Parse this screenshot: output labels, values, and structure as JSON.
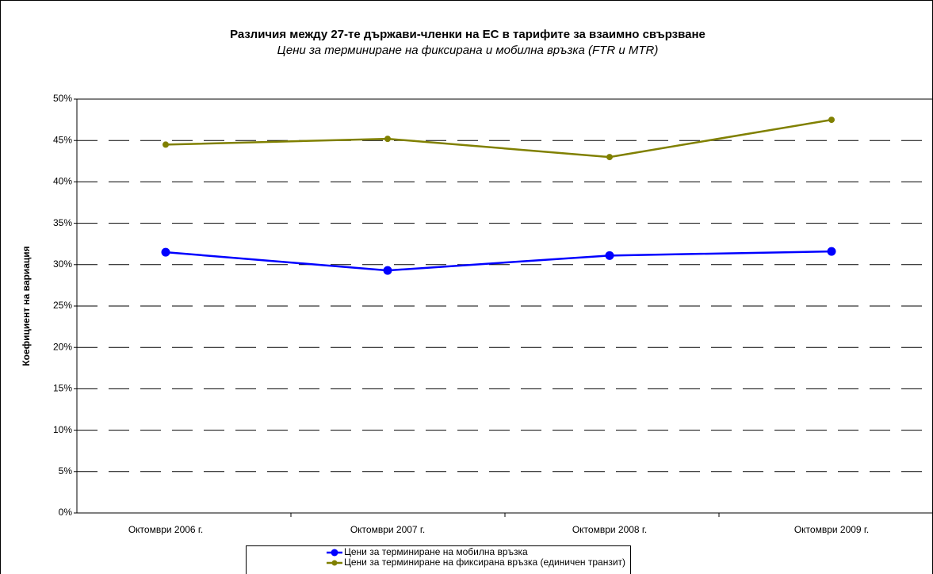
{
  "chart_data": {
    "type": "line",
    "title": "Различия между 27-те държави-членки на ЕС в тарифите за взаимно свързване",
    "subtitle": "Цени за терминиране на фиксирана и мобилна връзка (FTR и MTR)",
    "y_label": "Коефициент на вариация",
    "categories": [
      "Октомври 2006 г.",
      "Октомври 2007 г.",
      "Октомври 2008 г.",
      "Октомври 2009 г."
    ],
    "series": [
      {
        "name": "Цени за терминиране на мобилна връзка",
        "color": "#0000ff",
        "values": [
          31.5,
          29.3,
          31.1,
          31.6
        ]
      },
      {
        "name": "Цени за терминиране на фиксирана връзка (единичен транзит)",
        "color": "#808000",
        "values": [
          44.5,
          45.2,
          43.0,
          47.5
        ]
      }
    ],
    "ylim": [
      0,
      50
    ],
    "yticks": [
      {
        "value": 0,
        "label": "0%"
      },
      {
        "value": 5,
        "label": "5%"
      },
      {
        "value": 10,
        "label": "10%"
      },
      {
        "value": 15,
        "label": "15%"
      },
      {
        "value": 20,
        "label": "20%"
      },
      {
        "value": 25,
        "label": "25%"
      },
      {
        "value": 30,
        "label": "30%"
      },
      {
        "value": 35,
        "label": "35%"
      },
      {
        "value": 40,
        "label": "40%"
      },
      {
        "value": 45,
        "label": "45%"
      },
      {
        "value": 50,
        "label": "50%"
      }
    ],
    "grid": true
  }
}
